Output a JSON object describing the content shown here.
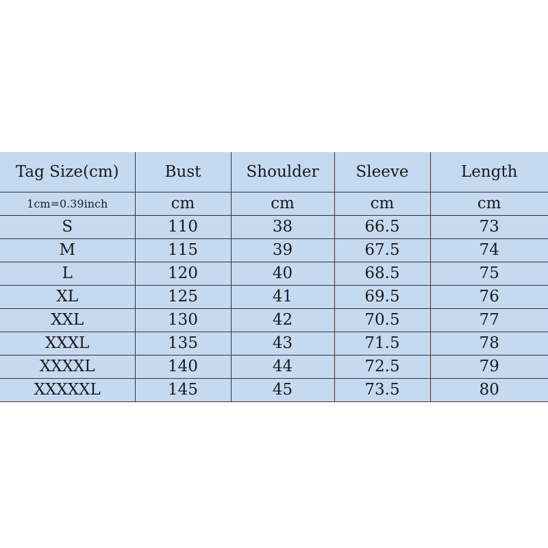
{
  "colors": {
    "table_background": "#c5d9f1",
    "border": "#333333"
  },
  "table": {
    "headers": [
      "Tag Size(cm)",
      "Bust",
      "Shoulder",
      "Sleeve",
      "Length"
    ],
    "units": [
      "1cm=0.39inch",
      "cm",
      "cm",
      "cm",
      "cm"
    ],
    "rows": [
      [
        "S",
        "110",
        "38",
        "66.5",
        "73"
      ],
      [
        "M",
        "115",
        "39",
        "67.5",
        "74"
      ],
      [
        "L",
        "120",
        "40",
        "68.5",
        "75"
      ],
      [
        "XL",
        "125",
        "41",
        "69.5",
        "76"
      ],
      [
        "XXL",
        "130",
        "42",
        "70.5",
        "77"
      ],
      [
        "XXXL",
        "135",
        "43",
        "71.5",
        "78"
      ],
      [
        "XXXXL",
        "140",
        "44",
        "72.5",
        "79"
      ],
      [
        "XXXXXL",
        "145",
        "45",
        "73.5",
        "80"
      ]
    ]
  }
}
